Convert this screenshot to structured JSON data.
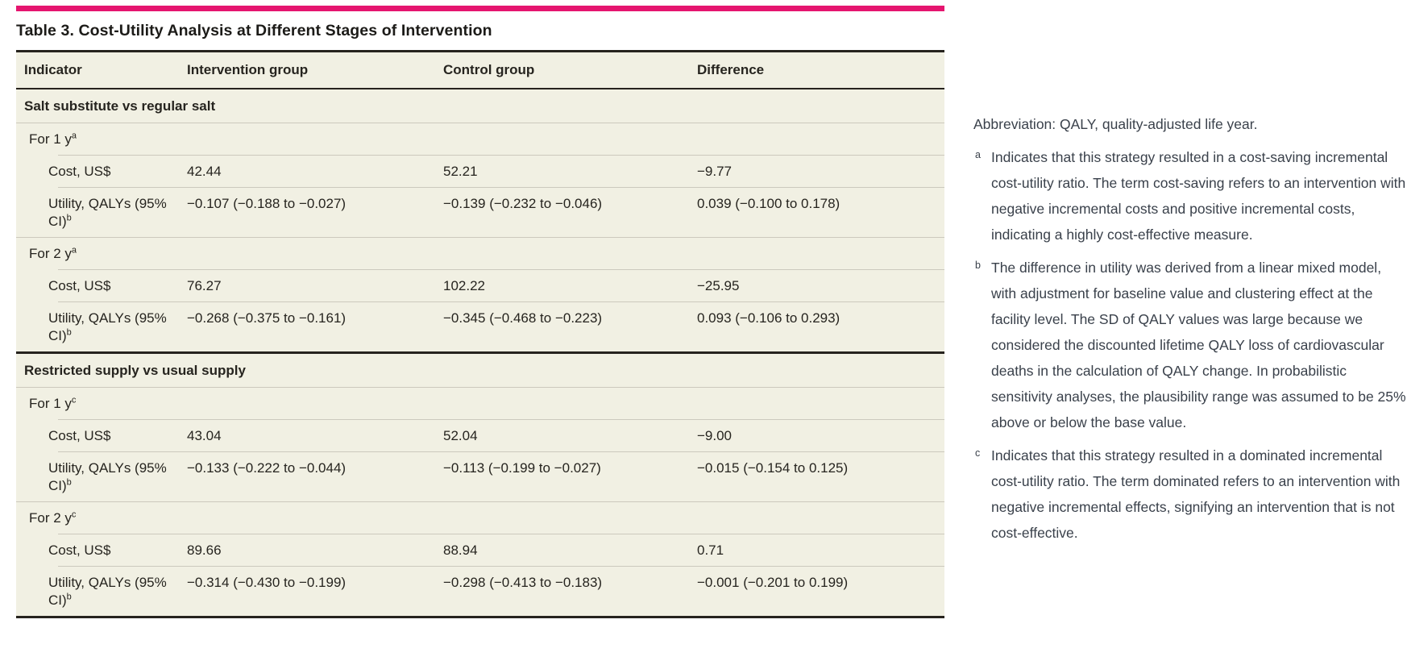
{
  "title": "Table 3. Cost-Utility Analysis at Different Stages of Intervention",
  "colors": {
    "accent_bar": "#e5156f",
    "table_background": "#f1f0e3",
    "rule_thin": "#ccc9bd",
    "rule_thick": "#26231e",
    "footnote_text": "#3a414b"
  },
  "table": {
    "columns": [
      "Indicator",
      "Intervention group",
      "Control group",
      "Difference"
    ],
    "sections": [
      {
        "header": "Salt substitute vs regular salt",
        "groups": [
          {
            "label": "For 1 y",
            "sup": "a",
            "rows": [
              {
                "label": "Cost, US$",
                "sup": "",
                "values": [
                  "42.44",
                  "52.21",
                  "−9.77"
                ]
              },
              {
                "label": "Utility, QALYs (95% CI)",
                "sup": "b",
                "values": [
                  "−0.107 (−0.188 to −0.027)",
                  "−0.139 (−0.232 to −0.046)",
                  "0.039 (−0.100 to 0.178)"
                ]
              }
            ]
          },
          {
            "label": "For 2 y",
            "sup": "a",
            "rows": [
              {
                "label": "Cost, US$",
                "sup": "",
                "values": [
                  "76.27",
                  "102.22",
                  "−25.95"
                ]
              },
              {
                "label": "Utility, QALYs (95% CI)",
                "sup": "b",
                "values": [
                  "−0.268 (−0.375 to −0.161)",
                  "−0.345 (−0.468 to −0.223)",
                  "0.093 (−0.106 to 0.293)"
                ]
              }
            ]
          }
        ]
      },
      {
        "header": "Restricted supply vs usual supply",
        "groups": [
          {
            "label": "For 1 y",
            "sup": "c",
            "rows": [
              {
                "label": "Cost, US$",
                "sup": "",
                "values": [
                  "43.04",
                  "52.04",
                  "−9.00"
                ]
              },
              {
                "label": "Utility, QALYs (95% CI)",
                "sup": "b",
                "values": [
                  "−0.133 (−0.222 to −0.044)",
                  "−0.113 (−0.199 to −0.027)",
                  "−0.015 (−0.154 to 0.125)"
                ]
              }
            ]
          },
          {
            "label": "For 2 y",
            "sup": "c",
            "rows": [
              {
                "label": "Cost, US$",
                "sup": "",
                "values": [
                  "89.66",
                  "88.94",
                  "0.71"
                ]
              },
              {
                "label": "Utility, QALYs (95% CI)",
                "sup": "b",
                "values": [
                  "−0.314 (−0.430 to −0.199)",
                  "−0.298 (−0.413 to −0.183)",
                  "−0.001 (−0.201 to 0.199)"
                ]
              }
            ]
          }
        ]
      }
    ]
  },
  "footnotes": {
    "abbreviation": "Abbreviation: QALY, quality-adjusted life year.",
    "items": [
      {
        "mark": "a",
        "text": "Indicates that this strategy resulted in a cost-saving incremental cost-utility ratio. The term cost-saving refers to an intervention with negative incremental costs and positive incremental costs, indicating a highly cost-effective measure."
      },
      {
        "mark": "b",
        "text": "The difference in utility was derived from a linear mixed model, with adjustment for baseline value and clustering effect at the facility level. The SD of QALY values was large because we considered the discounted lifetime QALY loss of cardiovascular deaths in the calculation of QALY change. In probabilistic sensitivity analyses, the plausibility range was assumed to be 25% above or below the base value."
      },
      {
        "mark": "c",
        "text": "Indicates that this strategy resulted in a dominated incremental cost-utility ratio. The term dominated refers to an intervention with negative incremental effects, signifying an intervention that is not cost-effective."
      }
    ]
  }
}
